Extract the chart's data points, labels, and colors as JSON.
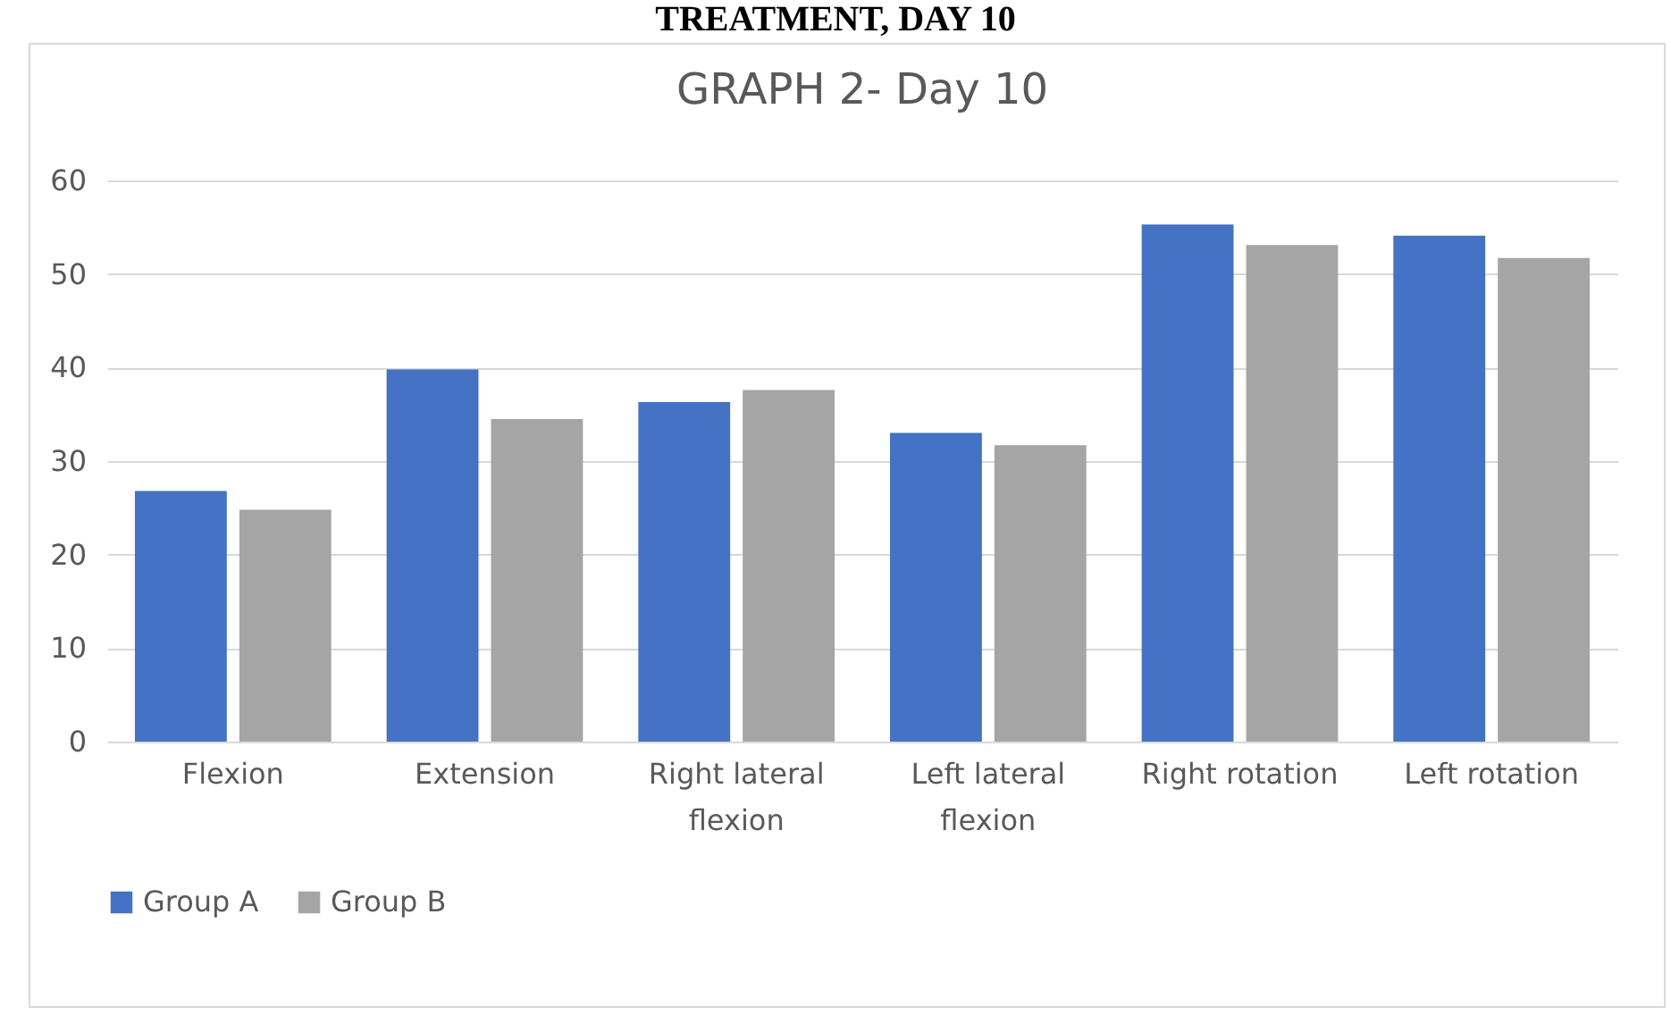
{
  "chart_data": {
    "type": "bar",
    "title": "GRAPH 2- Day 10",
    "annotations": [
      "TREATMENT, DAY 10"
    ],
    "categories": [
      "Flexion",
      "Extension",
      "Right lateral flexion",
      "Left lateral flexion",
      "Right rotation",
      "Left rotation"
    ],
    "series": [
      {
        "name": "Group A",
        "color": "#4472c4",
        "values": [
          26.8,
          39.8,
          36.3,
          33.0,
          55.3,
          54.1
        ]
      },
      {
        "name": "Group B",
        "color": "#a5a5a5",
        "values": [
          24.8,
          34.5,
          37.6,
          31.7,
          53.1,
          51.7
        ]
      }
    ],
    "ylim": [
      0,
      60
    ],
    "yticks": [
      0,
      10,
      20,
      30,
      40,
      50,
      60
    ],
    "grid": "y",
    "legend": "bottom"
  }
}
